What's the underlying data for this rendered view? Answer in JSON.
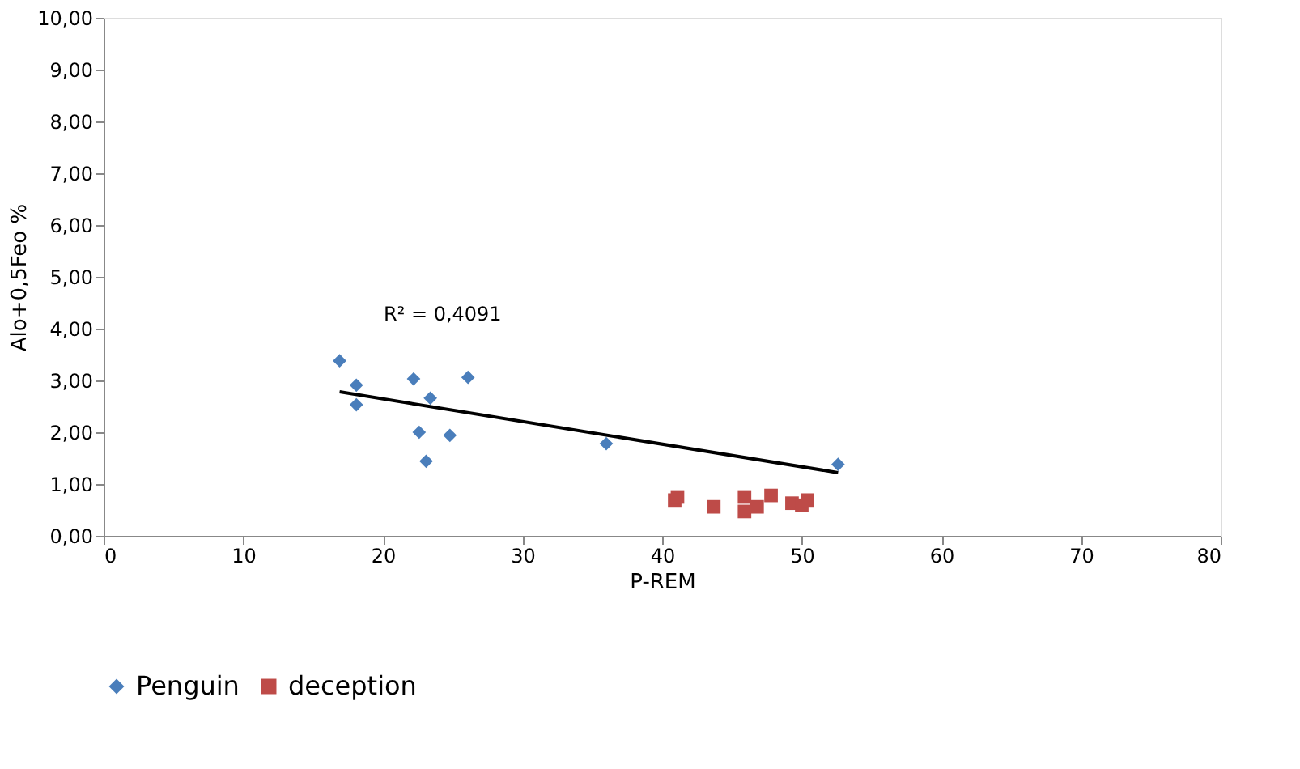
{
  "chart_data": {
    "type": "scatter",
    "xlabel": "P-REM",
    "ylabel": "Alo+0,5Feo %",
    "xlim": [
      0,
      80
    ],
    "xticks": [
      0,
      10,
      20,
      30,
      40,
      50,
      60,
      70,
      80
    ],
    "ylim": [
      0,
      10
    ],
    "yticks": [
      {
        "value": 0,
        "label": "0,00"
      },
      {
        "value": 1,
        "label": "1,00"
      },
      {
        "value": 2,
        "label": "2,00"
      },
      {
        "value": 3,
        "label": "3,00"
      },
      {
        "value": 4,
        "label": "4,00"
      },
      {
        "value": 5,
        "label": "5,00"
      },
      {
        "value": 6,
        "label": "6,00"
      },
      {
        "value": 7,
        "label": "7,00"
      },
      {
        "value": 8,
        "label": "8,00"
      },
      {
        "value": 9,
        "label": "9,00"
      },
      {
        "value": 10,
        "label": "10,00"
      }
    ],
    "grid": false,
    "legend": "bottom",
    "series": [
      {
        "name": "Penguin",
        "color": "#4a7ebb",
        "marker": "diamond",
        "x": [
          16.9,
          18.1,
          18.1,
          22.2,
          22.6,
          23.1,
          23.4,
          24.8,
          26.1,
          36.0,
          52.6
        ],
        "values": [
          3.38,
          2.91,
          2.53,
          3.03,
          2.0,
          1.44,
          2.66,
          1.94,
          3.06,
          1.78,
          1.38
        ]
      },
      {
        "name": "deception",
        "color": "#be4b48",
        "marker": "square",
        "x": [
          40.9,
          41.1,
          43.7,
          45.9,
          45.9,
          46.8,
          47.8,
          49.3,
          50.0,
          50.4
        ],
        "values": [
          0.69,
          0.75,
          0.56,
          0.75,
          0.47,
          0.56,
          0.78,
          0.63,
          0.59,
          0.69
        ]
      },
      {
        "type": "line",
        "color": "#000000",
        "line_style": "solid",
        "x": [
          16.9,
          52.6
        ],
        "values": [
          2.78,
          1.22
        ]
      }
    ],
    "annotations": [
      "R² = 0,4091"
    ]
  }
}
